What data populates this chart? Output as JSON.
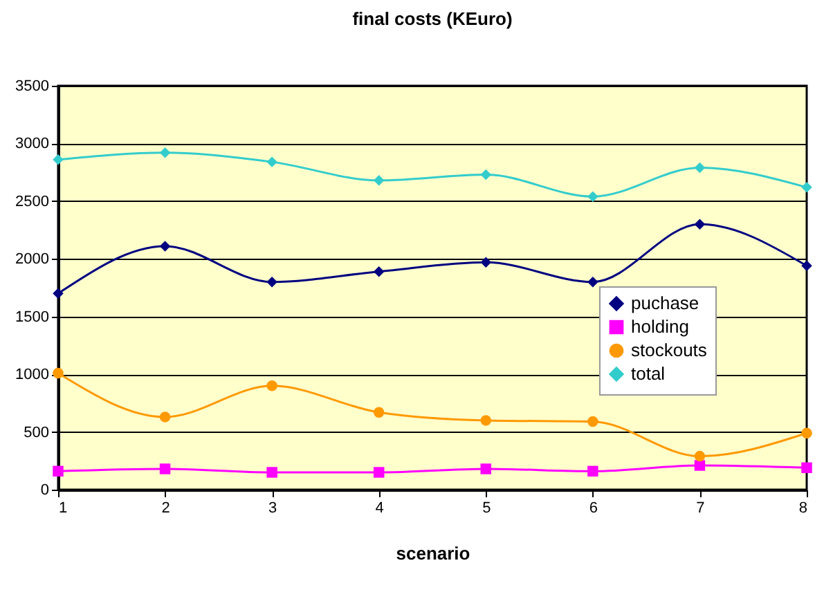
{
  "chart_data": {
    "type": "line",
    "title": "final costs (KEuro)",
    "xlabel": "scenario",
    "x": [
      1,
      2,
      3,
      4,
      5,
      6,
      7,
      8
    ],
    "xlim": [
      1,
      8
    ],
    "xticks": [
      1,
      2,
      3,
      4,
      5,
      6,
      7,
      8
    ],
    "ylim": [
      0,
      3500
    ],
    "yticks": [
      0,
      500,
      1000,
      1500,
      2000,
      2500,
      3000,
      3500
    ],
    "grid": "y",
    "legend": "right",
    "line_style": "solid",
    "series": [
      {
        "name": "puchase",
        "color": "#000080",
        "marker": "diamond",
        "values": [
          1700,
          2110,
          1800,
          1890,
          1970,
          1800,
          2300,
          1940
        ]
      },
      {
        "name": "holding",
        "color": "#ff00ff",
        "marker": "square",
        "values": [
          160,
          180,
          150,
          150,
          180,
          160,
          210,
          190
        ]
      },
      {
        "name": "stockouts",
        "color": "#ff9900",
        "marker": "circle",
        "values": [
          1010,
          630,
          900,
          670,
          600,
          590,
          290,
          490
        ]
      },
      {
        "name": "total",
        "color": "#33cccc",
        "marker": "diamond",
        "values": [
          2860,
          2920,
          2840,
          2680,
          2730,
          2540,
          2790,
          2620
        ]
      }
    ]
  }
}
